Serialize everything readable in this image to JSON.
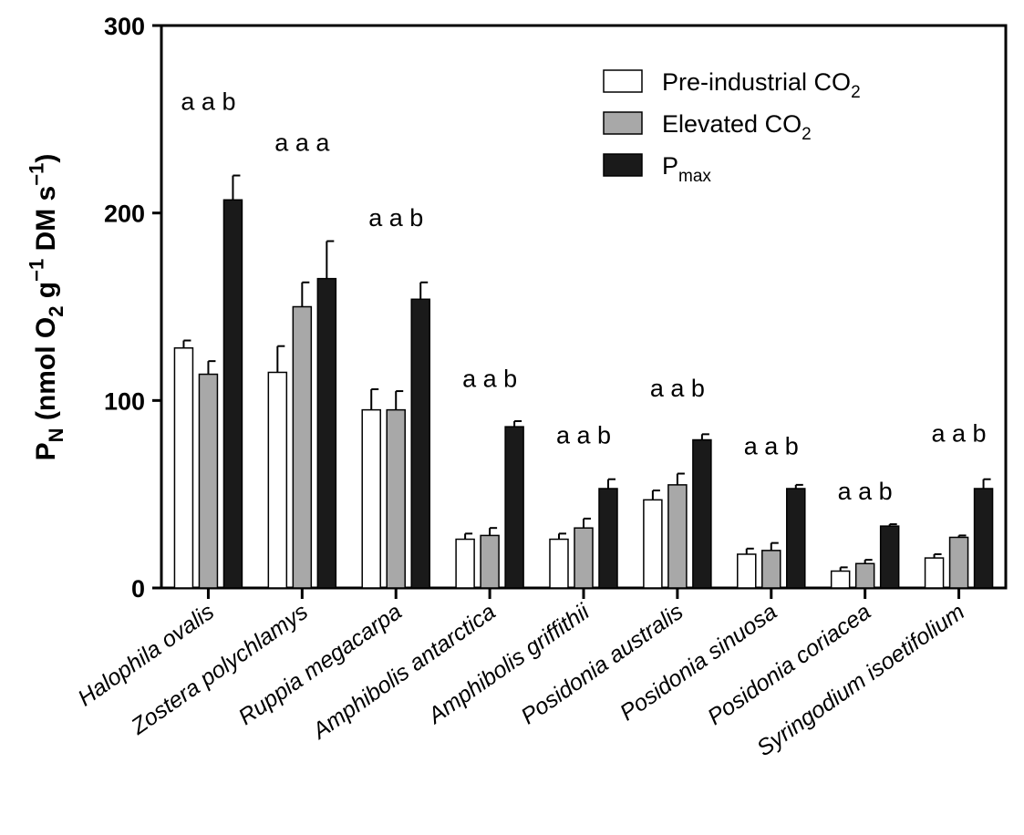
{
  "chart_data": {
    "type": "bar",
    "categories": [
      "Halophila ovalis",
      "Zostera polychlamys",
      "Ruppia megacarpa",
      "Amphibolis antarctica",
      "Amphibolis griffithii",
      "Posidonia australis",
      "Posidonia sinuosa",
      "Posidonia coriacea",
      "Syringodium isoetifolium"
    ],
    "series": [
      {
        "name": "Pre-industrial CO2",
        "color": "#ffffff",
        "values": [
          128,
          115,
          95,
          26,
          26,
          47,
          18,
          9,
          16
        ],
        "errors": [
          4,
          14,
          11,
          3,
          3,
          5,
          3,
          2,
          2
        ]
      },
      {
        "name": "Elevated CO2",
        "color": "#a8a8a8",
        "values": [
          114,
          150,
          95,
          28,
          32,
          55,
          20,
          13,
          27
        ],
        "errors": [
          7,
          13,
          10,
          4,
          5,
          6,
          4,
          2,
          1
        ]
      },
      {
        "name": "Pmax",
        "color": "#1a1a1a",
        "values": [
          207,
          165,
          154,
          86,
          53,
          79,
          53,
          33,
          53
        ],
        "errors": [
          13,
          20,
          9,
          3,
          5,
          3,
          2,
          1,
          5
        ]
      }
    ],
    "significance": [
      "a a b",
      "a a a",
      "a a b",
      "a a b",
      "a a b",
      "a a b",
      "a a b",
      "a a b",
      "a a b"
    ],
    "significance_y": [
      260,
      238,
      198,
      112,
      82,
      107,
      76,
      52,
      83
    ],
    "ylabel": {
      "parts": [
        {
          "t": "P"
        },
        {
          "t": "N",
          "sub": true
        },
        {
          "t": " (nmol O"
        },
        {
          "t": "2",
          "sub": true
        },
        {
          "t": " g"
        },
        {
          "t": "−1",
          "sup": true
        },
        {
          "t": " DM s"
        },
        {
          "t": "−1",
          "sup": true
        },
        {
          "t": ")"
        }
      ]
    },
    "ylim": [
      0,
      300
    ],
    "yticks": [
      "0",
      "100",
      "200",
      "300"
    ],
    "legend": [
      {
        "parts": [
          {
            "t": "Pre-industrial CO"
          },
          {
            "t": "2",
            "sub": true
          }
        ]
      },
      {
        "parts": [
          {
            "t": "Elevated CO"
          },
          {
            "t": "2",
            "sub": true
          }
        ]
      },
      {
        "parts": [
          {
            "t": "P"
          },
          {
            "t": "max",
            "sub": true
          }
        ]
      }
    ],
    "legend_position": "top-right",
    "grid": false
  }
}
